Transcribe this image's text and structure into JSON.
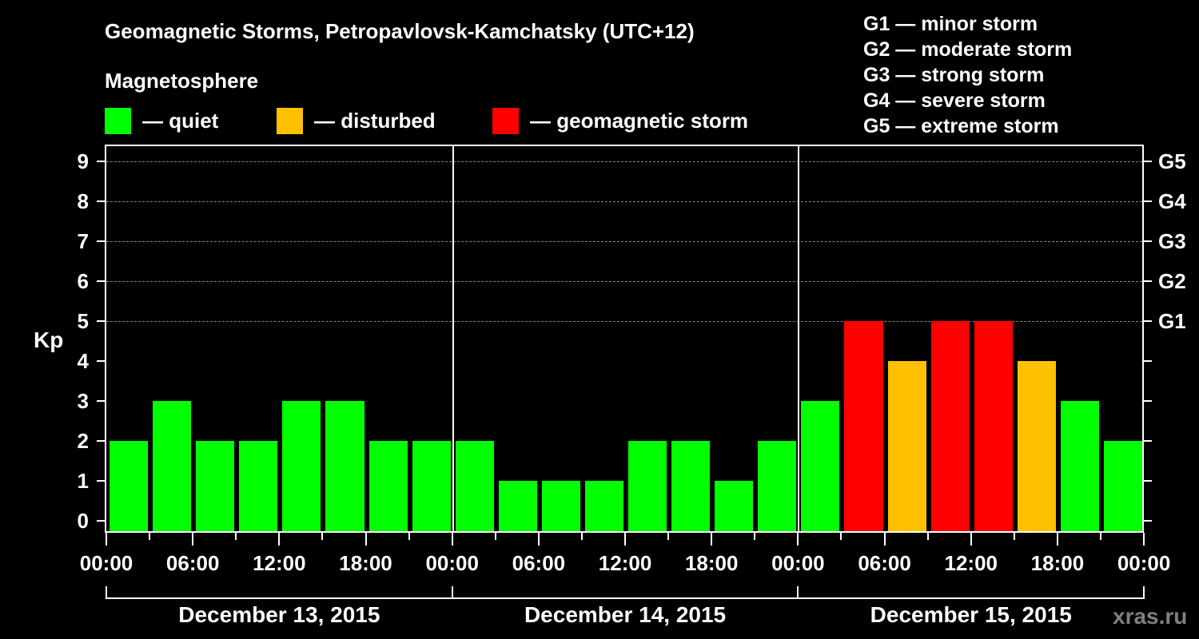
{
  "header": {
    "title": "Geomagnetic Storms, Petropavlovsk-Kamchatsky (UTC+12)",
    "subtitle": "Magnetosphere"
  },
  "legend": [
    {
      "label": "— quiet",
      "color": "#00ff00"
    },
    {
      "label": "— disturbed",
      "color": "#ffc000"
    },
    {
      "label": "— geomagnetic storm",
      "color": "#ff0000"
    }
  ],
  "g_scale": [
    "G1 — minor storm",
    "G2 — moderate storm",
    "G3 — strong storm",
    "G4 — severe storm",
    "G5 — extreme storm"
  ],
  "axis": {
    "ylabel": "Kp",
    "yticks": [
      "0",
      "1",
      "2",
      "3",
      "4",
      "5",
      "6",
      "7",
      "8",
      "9"
    ],
    "right_labels": [
      {
        "kp": 5,
        "label": "G1"
      },
      {
        "kp": 6,
        "label": "G2"
      },
      {
        "kp": 7,
        "label": "G3"
      },
      {
        "kp": 8,
        "label": "G4"
      },
      {
        "kp": 9,
        "label": "G5"
      }
    ],
    "xticks": [
      "00:00",
      "06:00",
      "12:00",
      "18:00",
      "00:00",
      "06:00",
      "12:00",
      "18:00",
      "00:00",
      "06:00",
      "12:00",
      "18:00",
      "00:00"
    ],
    "days": [
      "December 13, 2015",
      "December 14, 2015",
      "December 15, 2015"
    ]
  },
  "watermark": "xras.ru",
  "chart_data": {
    "type": "bar",
    "title": "Geomagnetic Storms, Petropavlovsk-Kamchatsky (UTC+12)",
    "xlabel": "",
    "ylabel": "Kp",
    "ylim": [
      0,
      9
    ],
    "grid": "dashed horizontal at Kp 5-9",
    "categories": [
      "Dec 13 00:00",
      "Dec 13 03:00",
      "Dec 13 06:00",
      "Dec 13 09:00",
      "Dec 13 12:00",
      "Dec 13 15:00",
      "Dec 13 18:00",
      "Dec 13 21:00",
      "Dec 14 00:00",
      "Dec 14 03:00",
      "Dec 14 06:00",
      "Dec 14 09:00",
      "Dec 14 12:00",
      "Dec 14 15:00",
      "Dec 14 18:00",
      "Dec 14 21:00",
      "Dec 15 00:00",
      "Dec 15 03:00",
      "Dec 15 06:00",
      "Dec 15 09:00",
      "Dec 15 12:00",
      "Dec 15 15:00",
      "Dec 15 18:00",
      "Dec 15 21:00"
    ],
    "values": [
      2,
      3,
      2,
      2,
      3,
      3,
      2,
      2,
      2,
      1,
      1,
      1,
      2,
      2,
      1,
      2,
      3,
      5,
      4,
      5,
      5,
      4,
      3,
      2
    ],
    "status": [
      "quiet",
      "quiet",
      "quiet",
      "quiet",
      "quiet",
      "quiet",
      "quiet",
      "quiet",
      "quiet",
      "quiet",
      "quiet",
      "quiet",
      "quiet",
      "quiet",
      "quiet",
      "quiet",
      "quiet",
      "storm",
      "disturbed",
      "storm",
      "storm",
      "disturbed",
      "quiet",
      "quiet"
    ],
    "legend": [
      "quiet",
      "disturbed",
      "geomagnetic storm"
    ],
    "right_axis": {
      "5": "G1",
      "6": "G2",
      "7": "G3",
      "8": "G4",
      "9": "G5"
    }
  }
}
